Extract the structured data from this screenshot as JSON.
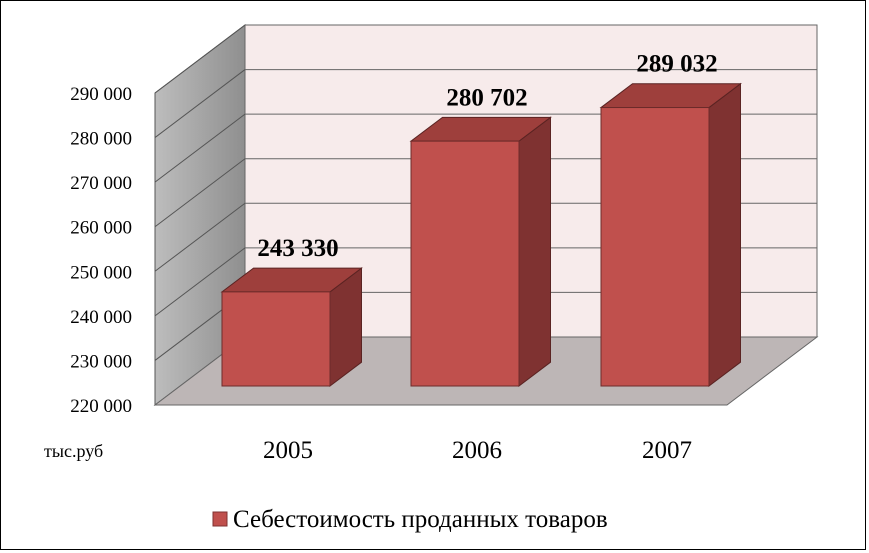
{
  "chart_data": {
    "type": "bar",
    "categories": [
      "2005",
      "2006",
      "2007"
    ],
    "series": [
      {
        "name": "Себестоимость проданных товаров",
        "values": [
          243330,
          280702,
          289032
        ]
      }
    ],
    "data_labels": [
      "243 330",
      "280 702",
      "289 032"
    ],
    "y_ticks": [
      "220 000",
      "230 000",
      "240 000",
      "250 000",
      "260 000",
      "270 000",
      "280 000",
      "290 000"
    ],
    "ylim": [
      220000,
      290000
    ],
    "unit_label": "тыс.руб",
    "legend_position": "bottom",
    "grid": true,
    "style": "3d-column",
    "colors": {
      "bar_front": "#c0504d",
      "bar_side": "#7f3231",
      "bar_top": "#9e3f3c",
      "back_wall": "#f7ebeb",
      "side_wall": "#a6a6a6",
      "floor": "#bdb6b6"
    }
  }
}
